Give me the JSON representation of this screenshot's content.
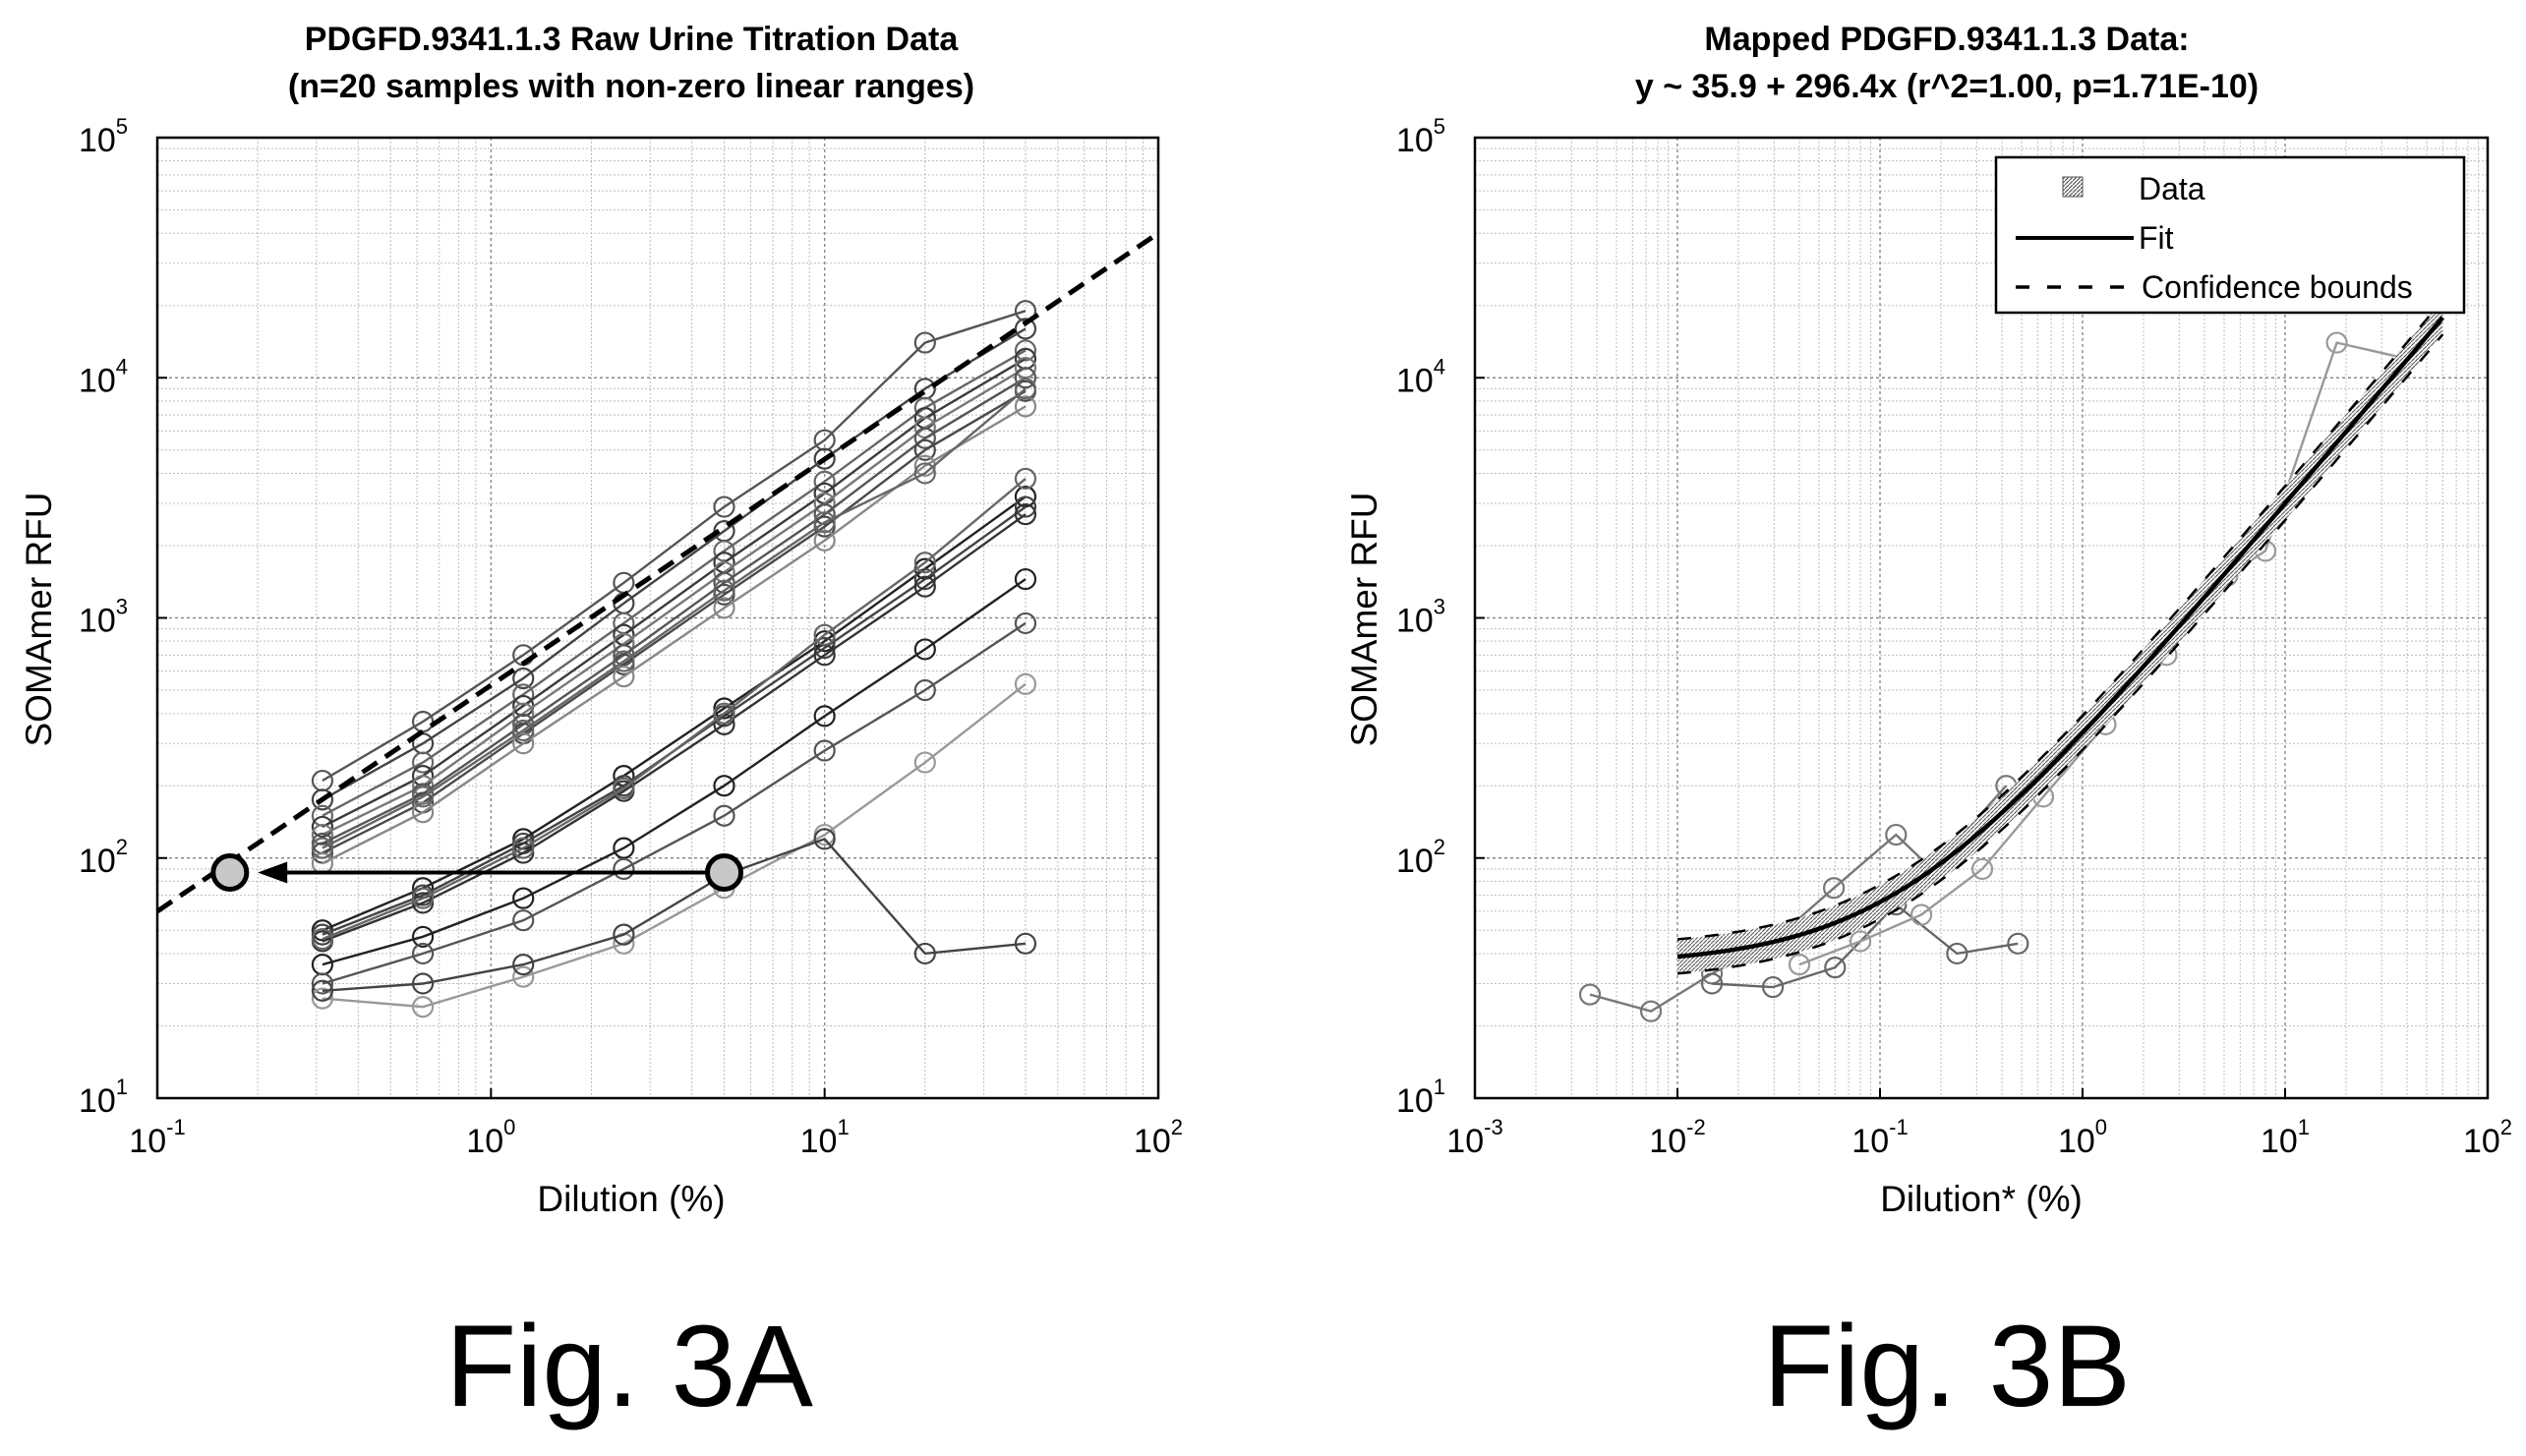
{
  "chart_data": [
    {
      "id": "fig3a",
      "type": "line",
      "figure_label": "Fig. 3A",
      "title": "PDGFD.9341.1.3 Raw Urine Titration Data",
      "subtitle": "(n=20 samples with non-zero linear ranges)",
      "xlabel": "Dilution (%)",
      "ylabel": "SOMAmer RFU",
      "xscale": "log",
      "yscale": "log",
      "xlim": [
        0.1,
        100
      ],
      "ylim": [
        10,
        100000
      ],
      "grid": true,
      "xticks": [
        {
          "base": "10",
          "exp": "-1"
        },
        {
          "base": "10",
          "exp": "0"
        },
        {
          "base": "10",
          "exp": "1"
        },
        {
          "base": "10",
          "exp": "2"
        }
      ],
      "yticks": [
        {
          "base": "10",
          "exp": "1"
        },
        {
          "base": "10",
          "exp": "2"
        },
        {
          "base": "10",
          "exp": "3"
        },
        {
          "base": "10",
          "exp": "4"
        },
        {
          "base": "10",
          "exp": "5"
        }
      ],
      "x": [
        0.3125,
        0.625,
        1.25,
        2.5,
        5,
        10,
        20,
        40
      ],
      "series": [
        {
          "values": [
            210,
            370,
            700,
            1400,
            2900,
            5500,
            14000,
            19000
          ]
        },
        {
          "values": [
            175,
            300,
            560,
            1150,
            2300,
            4600,
            9000,
            16000
          ]
        },
        {
          "values": [
            150,
            250,
            480,
            950,
            1900,
            3700,
            7500,
            13000
          ]
        },
        {
          "values": [
            135,
            220,
            430,
            850,
            1700,
            3300,
            6800,
            12000
          ]
        },
        {
          "values": [
            125,
            200,
            400,
            780,
            1550,
            3000,
            6200,
            11000
          ]
        },
        {
          "values": [
            115,
            185,
            360,
            700,
            1400,
            2700,
            5600,
            10000
          ]
        },
        {
          "values": [
            105,
            170,
            330,
            640,
            1250,
            2400,
            5000,
            8800
          ]
        },
        {
          "values": [
            95,
            155,
            300,
            570,
            1100,
            2100,
            4300,
            7600
          ]
        },
        {
          "values": [
            110,
            180,
            340,
            660,
            1300,
            2500,
            4000,
            9000
          ]
        },
        {
          "values": [
            50,
            75,
            120,
            220,
            420,
            800,
            1600,
            3200
          ]
        },
        {
          "values": [
            48,
            70,
            115,
            200,
            390,
            750,
            1450,
            2900
          ]
        },
        {
          "values": [
            45,
            65,
            105,
            190,
            360,
            700,
            1350,
            2700
          ]
        },
        {
          "values": [
            46,
            68,
            110,
            195,
            400,
            850,
            1700,
            3800
          ]
        },
        {
          "values": [
            36,
            47,
            68,
            110,
            200,
            390,
            740,
            1450
          ]
        },
        {
          "values": [
            30,
            40,
            55,
            90,
            150,
            280,
            500,
            950
          ]
        },
        {
          "values": [
            26,
            24,
            32,
            44,
            75,
            125,
            250,
            530
          ]
        },
        {
          "values": [
            28,
            30,
            36,
            48,
            85,
            120,
            40,
            44
          ]
        }
      ],
      "fit_line": {
        "x": [
          0.1,
          100
        ],
        "y": [
          60,
          40000
        ]
      },
      "arrow": {
        "from": [
          5,
          87
        ],
        "to": [
          0.2,
          87
        ]
      },
      "highlight_points": [
        [
          5,
          87
        ],
        [
          0.165,
          87
        ]
      ]
    },
    {
      "id": "fig3b",
      "type": "line",
      "figure_label": "Fig. 3B",
      "title": "Mapped PDGFD.9341.1.3 Data:",
      "subtitle": "y ~ 35.9 + 296.4x (r^2=1.00, p=1.71E-10)",
      "xlabel": "Dilution* (%)",
      "ylabel": "SOMAmer RFU",
      "xscale": "log",
      "yscale": "log",
      "xlim": [
        0.001,
        100
      ],
      "ylim": [
        10,
        100000
      ],
      "grid": true,
      "legend_position": "top-right",
      "legend": [
        {
          "label": "Data",
          "style": "data"
        },
        {
          "label": "Fit",
          "style": "fit"
        },
        {
          "label": "Confidence bounds",
          "style": "confidence"
        }
      ],
      "xticks": [
        {
          "base": "10",
          "exp": "-3"
        },
        {
          "base": "10",
          "exp": "-2"
        },
        {
          "base": "10",
          "exp": "-1"
        },
        {
          "base": "10",
          "exp": "0"
        },
        {
          "base": "10",
          "exp": "1"
        },
        {
          "base": "10",
          "exp": "2"
        }
      ],
      "yticks": [
        {
          "base": "10",
          "exp": "1"
        },
        {
          "base": "10",
          "exp": "2"
        },
        {
          "base": "10",
          "exp": "3"
        },
        {
          "base": "10",
          "exp": "4"
        },
        {
          "base": "10",
          "exp": "5"
        }
      ],
      "fit": {
        "intercept": 35.9,
        "slope": 296.4,
        "x_range": [
          0.01,
          60
        ]
      },
      "series": [
        {
          "x": [
            0.0037,
            0.0074,
            0.0148,
            0.0296,
            0.0592,
            0.12,
            0.18,
            0.42
          ],
          "values": [
            27,
            23,
            33,
            45,
            75,
            125,
            90,
            200
          ]
        },
        {
          "x": [
            0.0148,
            0.0296,
            0.06,
            0.12,
            0.24,
            0.48
          ],
          "values": [
            30,
            29,
            35,
            64,
            40,
            44
          ]
        },
        {
          "x": [
            0.04,
            0.08,
            0.16,
            0.32,
            0.64,
            1.3,
            2.6,
            5.2,
            8,
            18,
            40
          ],
          "values": [
            36,
            45,
            58,
            90,
            180,
            360,
            700,
            1500,
            1900,
            14000,
            12000
          ]
        }
      ]
    }
  ]
}
